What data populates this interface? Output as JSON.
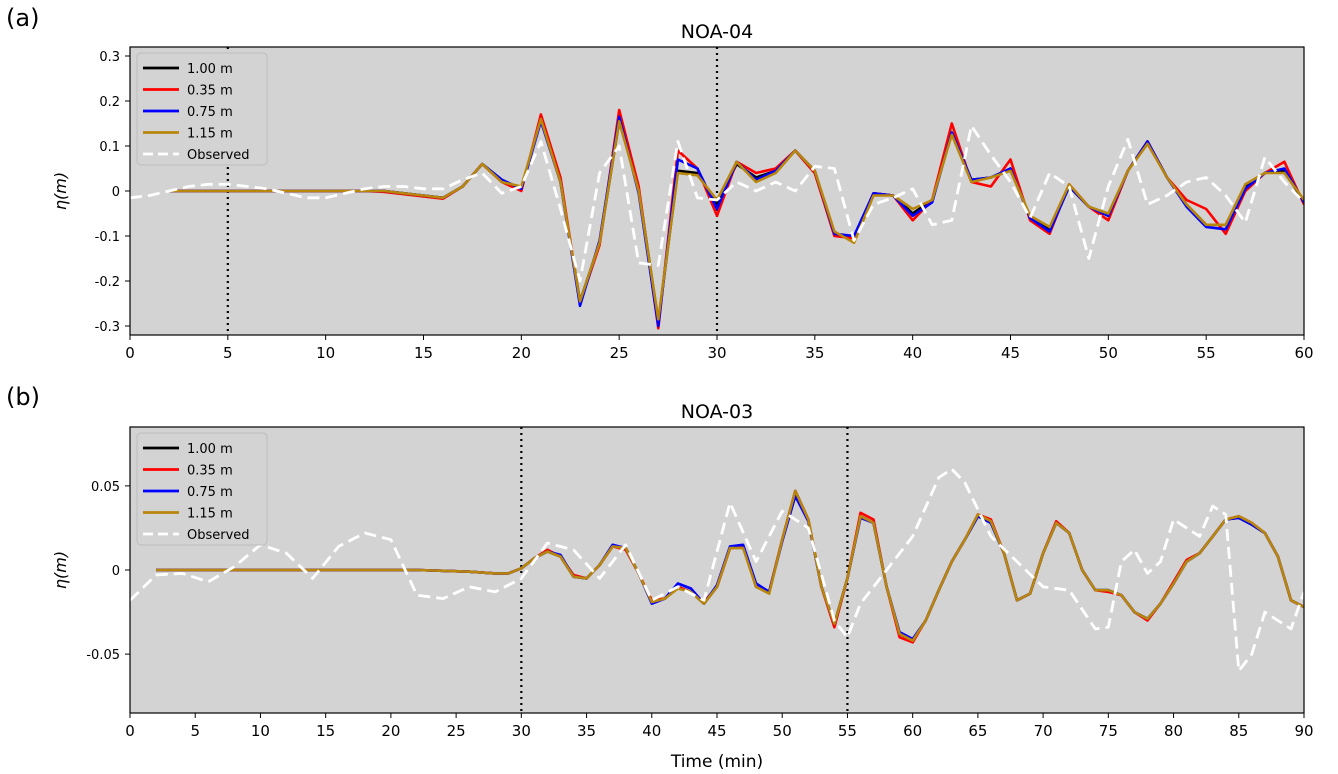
{
  "panel_labels": [
    "(a)",
    "(b)"
  ],
  "legend": [
    "1.00 m",
    "0.35 m",
    "0.75 m",
    "1.15 m",
    "Observed"
  ],
  "colors": {
    "s100": "#000000",
    "s035": "#ff0000",
    "s075": "#0000ff",
    "s115": "#b8860b",
    "observed": "#ffffff",
    "background": "#d3d3d3"
  },
  "chart_data": [
    {
      "type": "line",
      "title": "NOA-04",
      "panel": "(a)",
      "xlabel": "",
      "ylabel": "η(m)",
      "xlim": [
        0,
        60
      ],
      "ylim": [
        -0.32,
        0.32
      ],
      "xticks": [
        0,
        5,
        10,
        15,
        20,
        25,
        30,
        35,
        40,
        45,
        50,
        55,
        60
      ],
      "yticks": [
        -0.3,
        -0.2,
        -0.1,
        0,
        0.1,
        0.2,
        0.3
      ],
      "ytick_labels": [
        "-0.3",
        "-0.2",
        "-0.1",
        "0",
        "0.1",
        "0.2",
        "0.3"
      ],
      "vlines": [
        5,
        30
      ],
      "legend_position": "upper-left",
      "x": [
        2,
        3,
        4,
        5,
        6,
        7,
        8,
        9,
        10,
        11,
        12,
        13,
        14,
        15,
        16,
        17,
        18,
        19,
        20,
        21,
        22,
        23,
        24,
        25,
        26,
        27,
        28,
        29,
        30,
        31,
        32,
        33,
        34,
        35,
        36,
        37,
        38,
        39,
        40,
        41,
        42,
        43,
        44,
        45,
        46,
        47,
        48,
        49,
        50,
        51,
        52,
        53,
        54,
        55,
        56,
        57,
        58,
        59,
        60
      ],
      "series": [
        {
          "name": "1.00 m",
          "color": "#000000",
          "values": [
            0,
            0,
            0,
            0,
            0,
            0,
            0,
            0,
            0,
            0,
            0,
            0,
            -0.005,
            -0.01,
            -0.015,
            0.01,
            0.06,
            0.025,
            0.005,
            0.16,
            0.02,
            -0.245,
            -0.115,
            0.155,
            0.005,
            -0.29,
            0.045,
            0.04,
            -0.03,
            0.06,
            0.03,
            0.045,
            0.09,
            0.04,
            -0.095,
            -0.105,
            -0.005,
            -0.01,
            -0.05,
            -0.02,
            0.13,
            0.025,
            0.03,
            0.05,
            -0.06,
            -0.085,
            0.01,
            -0.035,
            -0.055,
            0.045,
            0.11,
            0.03,
            -0.03,
            -0.075,
            -0.075,
            0.01,
            0.04,
            0.045,
            -0.025
          ]
        },
        {
          "name": "0.35 m",
          "color": "#ff0000",
          "values": [
            0,
            0,
            0,
            0,
            0,
            0,
            0,
            0,
            0,
            0,
            0,
            -0.002,
            -0.007,
            -0.012,
            -0.017,
            0.01,
            0.06,
            0.02,
            0,
            0.17,
            0.03,
            -0.25,
            -0.12,
            0.18,
            0.01,
            -0.305,
            0.09,
            0.05,
            -0.055,
            0.065,
            0.04,
            0.05,
            0.09,
            0.04,
            -0.1,
            -0.105,
            -0.005,
            -0.01,
            -0.065,
            -0.02,
            0.15,
            0.02,
            0.01,
            0.07,
            -0.065,
            -0.095,
            0.015,
            -0.035,
            -0.065,
            0.045,
            0.11,
            0.03,
            -0.02,
            -0.04,
            -0.095,
            0,
            0.04,
            0.065,
            -0.03
          ]
        },
        {
          "name": "0.75 m",
          "color": "#0000ff",
          "values": [
            0,
            0,
            0,
            0,
            0,
            0,
            0,
            0,
            0,
            0,
            0,
            0,
            -0.005,
            -0.01,
            -0.015,
            0.01,
            0.06,
            0.025,
            0.005,
            0.155,
            0.02,
            -0.255,
            -0.11,
            0.165,
            -0.005,
            -0.3,
            0.07,
            0.05,
            -0.04,
            0.065,
            0.025,
            0.045,
            0.09,
            0.045,
            -0.095,
            -0.1,
            -0.005,
            -0.01,
            -0.055,
            -0.025,
            0.13,
            0.025,
            0.03,
            0.05,
            -0.06,
            -0.09,
            0.01,
            -0.035,
            -0.055,
            0.045,
            0.11,
            0.03,
            -0.035,
            -0.08,
            -0.085,
            0.005,
            0.04,
            0.05,
            -0.025
          ]
        },
        {
          "name": "1.15 m",
          "color": "#b8860b",
          "values": [
            0,
            0,
            0,
            0,
            0,
            0,
            0,
            0,
            0,
            0,
            0,
            0,
            -0.005,
            -0.01,
            -0.015,
            0.01,
            0.06,
            0.02,
            0.01,
            0.16,
            0.02,
            -0.245,
            -0.115,
            0.155,
            0,
            -0.285,
            0.04,
            0.035,
            -0.02,
            0.065,
            0.02,
            0.04,
            0.09,
            0.045,
            -0.09,
            -0.115,
            -0.01,
            -0.01,
            -0.04,
            -0.02,
            0.125,
            0.02,
            0.03,
            0.045,
            -0.055,
            -0.08,
            0.015,
            -0.035,
            -0.05,
            0.045,
            0.105,
            0.03,
            -0.03,
            -0.075,
            -0.075,
            0.015,
            0.04,
            0.04,
            -0.02
          ]
        }
      ],
      "observed": {
        "name": "Observed",
        "color": "#ffffff",
        "x": [
          0,
          1,
          2,
          3,
          4,
          5,
          6,
          7,
          8,
          9,
          10,
          11,
          12,
          13,
          14,
          15,
          16,
          17,
          18,
          19,
          20,
          21,
          22,
          23,
          24,
          25,
          26,
          27,
          28,
          29,
          30,
          31,
          32,
          33,
          34,
          35,
          36,
          37,
          38,
          39,
          40,
          41,
          42,
          43,
          44,
          45,
          46,
          47,
          48,
          49,
          50,
          51,
          52,
          53,
          54,
          55,
          56,
          57,
          58,
          59,
          60
        ],
        "values": [
          -0.015,
          -0.01,
          0,
          0.01,
          0.015,
          0.015,
          0.01,
          0.005,
          -0.005,
          -0.015,
          -0.015,
          -0.005,
          0.005,
          0.01,
          0.01,
          0.005,
          0.005,
          0.025,
          0.04,
          -0.005,
          0.01,
          0.11,
          -0.04,
          -0.2,
          0.04,
          0.1,
          -0.16,
          -0.165,
          0.11,
          -0.015,
          -0.02,
          0.02,
          0,
          0.02,
          0,
          0.055,
          0.05,
          -0.11,
          -0.03,
          -0.015,
          0.005,
          -0.075,
          -0.065,
          0.145,
          0.08,
          0.02,
          -0.06,
          0.04,
          0.01,
          -0.15,
          0.01,
          0.115,
          -0.03,
          -0.01,
          0.02,
          0.03,
          -0.01,
          -0.07,
          0.075,
          0.02,
          -0.025
        ]
      }
    },
    {
      "type": "line",
      "title": "NOA-03",
      "panel": "(b)",
      "xlabel": "Time (min)",
      "ylabel": "η(m)",
      "xlim": [
        0,
        90
      ],
      "ylim": [
        -0.085,
        0.085
      ],
      "xticks": [
        0,
        5,
        10,
        15,
        20,
        25,
        30,
        35,
        40,
        45,
        50,
        55,
        60,
        65,
        70,
        75,
        80,
        85,
        90
      ],
      "yticks": [
        -0.05,
        0,
        0.05
      ],
      "ytick_labels": [
        "-0.05",
        "0",
        "0.05"
      ],
      "vlines": [
        30,
        55
      ],
      "legend_position": "upper-left",
      "x": [
        2,
        4,
        6,
        8,
        10,
        12,
        14,
        16,
        18,
        20,
        22,
        24,
        26,
        28,
        29,
        30,
        31,
        32,
        33,
        34,
        35,
        36,
        37,
        38,
        39,
        40,
        41,
        42,
        43,
        44,
        45,
        46,
        47,
        48,
        49,
        50,
        51,
        52,
        53,
        54,
        55,
        56,
        57,
        58,
        59,
        60,
        61,
        62,
        63,
        64,
        65,
        66,
        67,
        68,
        69,
        70,
        71,
        72,
        73,
        74,
        75,
        76,
        77,
        78,
        79,
        80,
        81,
        82,
        83,
        84,
        85,
        86,
        87,
        88,
        89,
        90
      ],
      "series": [
        {
          "name": "1.00 m",
          "color": "#000000",
          "values": [
            0,
            0,
            0,
            0,
            0,
            0,
            0,
            0,
            0,
            0,
            0,
            -0.0005,
            -0.001,
            -0.002,
            -0.002,
            0.001,
            0.007,
            0.011,
            0.008,
            -0.004,
            -0.005,
            0.003,
            0.014,
            0.013,
            -0.002,
            -0.019,
            -0.017,
            -0.01,
            -0.013,
            -0.02,
            -0.01,
            0.013,
            0.014,
            -0.01,
            -0.013,
            0.018,
            0.047,
            0.03,
            -0.01,
            -0.032,
            -0.005,
            0.032,
            0.028,
            -0.01,
            -0.038,
            -0.042,
            -0.03,
            -0.012,
            0.005,
            0.018,
            0.032,
            0.028,
            0.01,
            -0.018,
            -0.014,
            0.01,
            0.028,
            0.022,
            0,
            -0.012,
            -0.012,
            -0.015,
            -0.025,
            -0.029,
            -0.02,
            -0.008,
            0.005,
            0.01,
            0.02,
            0.03,
            0.031,
            0.027,
            0.022,
            0.008,
            -0.018,
            -0.022
          ]
        },
        {
          "name": "0.35 m",
          "color": "#ff0000",
          "values": [
            0,
            0,
            0,
            0,
            0,
            0,
            0,
            0,
            0,
            0,
            0,
            -0.0005,
            -0.001,
            -0.002,
            -0.002,
            0.001,
            0.007,
            0.012,
            0.008,
            -0.003,
            -0.005,
            0.003,
            0.014,
            0.012,
            -0.002,
            -0.018,
            -0.017,
            -0.01,
            -0.013,
            -0.019,
            -0.01,
            0.013,
            0.014,
            -0.01,
            -0.013,
            0.018,
            0.047,
            0.03,
            -0.01,
            -0.034,
            -0.005,
            0.034,
            0.03,
            -0.01,
            -0.04,
            -0.043,
            -0.03,
            -0.012,
            0.005,
            0.018,
            0.033,
            0.03,
            0.01,
            -0.018,
            -0.014,
            0.01,
            0.029,
            0.022,
            0,
            -0.012,
            -0.013,
            -0.015,
            -0.025,
            -0.03,
            -0.02,
            -0.007,
            0.006,
            0.01,
            0.02,
            0.03,
            0.032,
            0.028,
            0.022,
            0.008,
            -0.018,
            -0.022
          ]
        },
        {
          "name": "0.75 m",
          "color": "#0000ff",
          "values": [
            0,
            0,
            0,
            0,
            0,
            0,
            0,
            0,
            0,
            0,
            0,
            -0.0005,
            -0.001,
            -0.002,
            -0.002,
            0.001,
            0.007,
            0.011,
            0.009,
            -0.004,
            -0.005,
            0.003,
            0.015,
            0.013,
            -0.002,
            -0.02,
            -0.017,
            -0.008,
            -0.011,
            -0.02,
            -0.009,
            0.014,
            0.015,
            -0.008,
            -0.013,
            0.017,
            0.044,
            0.029,
            -0.01,
            -0.032,
            -0.005,
            0.031,
            0.028,
            -0.01,
            -0.037,
            -0.041,
            -0.03,
            -0.012,
            0.005,
            0.018,
            0.032,
            0.028,
            0.01,
            -0.018,
            -0.014,
            0.01,
            0.028,
            0.022,
            0,
            -0.012,
            -0.012,
            -0.015,
            -0.025,
            -0.029,
            -0.02,
            -0.008,
            0.005,
            0.01,
            0.02,
            0.03,
            0.031,
            0.027,
            0.022,
            0.008,
            -0.018,
            -0.022
          ]
        },
        {
          "name": "1.15 m",
          "color": "#b8860b",
          "values": [
            0,
            0,
            0,
            0,
            0,
            0,
            0,
            0,
            0,
            0,
            0,
            -0.0005,
            -0.001,
            -0.002,
            -0.002,
            0.001,
            0.007,
            0.011,
            0.008,
            -0.004,
            -0.005,
            0.003,
            0.014,
            0.013,
            -0.002,
            -0.019,
            -0.017,
            -0.011,
            -0.013,
            -0.02,
            -0.01,
            0.013,
            0.013,
            -0.01,
            -0.014,
            0.018,
            0.047,
            0.03,
            -0.01,
            -0.032,
            -0.005,
            0.032,
            0.028,
            -0.01,
            -0.038,
            -0.042,
            -0.03,
            -0.012,
            0.005,
            0.018,
            0.033,
            0.029,
            0.01,
            -0.018,
            -0.014,
            0.01,
            0.028,
            0.022,
            0,
            -0.012,
            -0.012,
            -0.015,
            -0.025,
            -0.029,
            -0.02,
            -0.008,
            0.005,
            0.01,
            0.02,
            0.03,
            0.032,
            0.028,
            0.022,
            0.008,
            -0.018,
            -0.022
          ]
        }
      ],
      "observed": {
        "name": "Observed",
        "color": "#ffffff",
        "x": [
          0,
          2,
          4,
          6,
          8,
          10,
          12,
          14,
          16,
          18,
          20,
          22,
          24,
          26,
          28,
          30,
          32,
          34,
          36,
          38,
          40,
          42,
          44,
          46,
          48,
          50,
          52,
          54,
          55,
          56,
          58,
          60,
          62,
          63,
          64,
          66,
          68,
          70,
          72,
          74,
          75,
          76,
          77,
          78,
          79,
          80,
          81,
          82,
          83,
          84,
          85,
          86,
          87,
          88,
          89,
          90
        ],
        "values": [
          -0.018,
          -0.003,
          -0.002,
          -0.007,
          0.002,
          0.015,
          0.01,
          -0.005,
          0.014,
          0.022,
          0.018,
          -0.015,
          -0.017,
          -0.01,
          -0.013,
          -0.005,
          0.016,
          0.012,
          -0.005,
          0.015,
          -0.018,
          -0.01,
          -0.018,
          0.04,
          0.005,
          0.035,
          0.025,
          -0.03,
          -0.04,
          -0.02,
          0,
          0.02,
          0.055,
          0.06,
          0.052,
          0.02,
          0.005,
          -0.01,
          -0.012,
          -0.035,
          -0.034,
          0.005,
          0.012,
          -0.002,
          0.005,
          0.03,
          0.025,
          0.02,
          0.038,
          0.033,
          -0.06,
          -0.05,
          -0.025,
          -0.03,
          -0.035,
          -0.013
        ]
      }
    }
  ]
}
